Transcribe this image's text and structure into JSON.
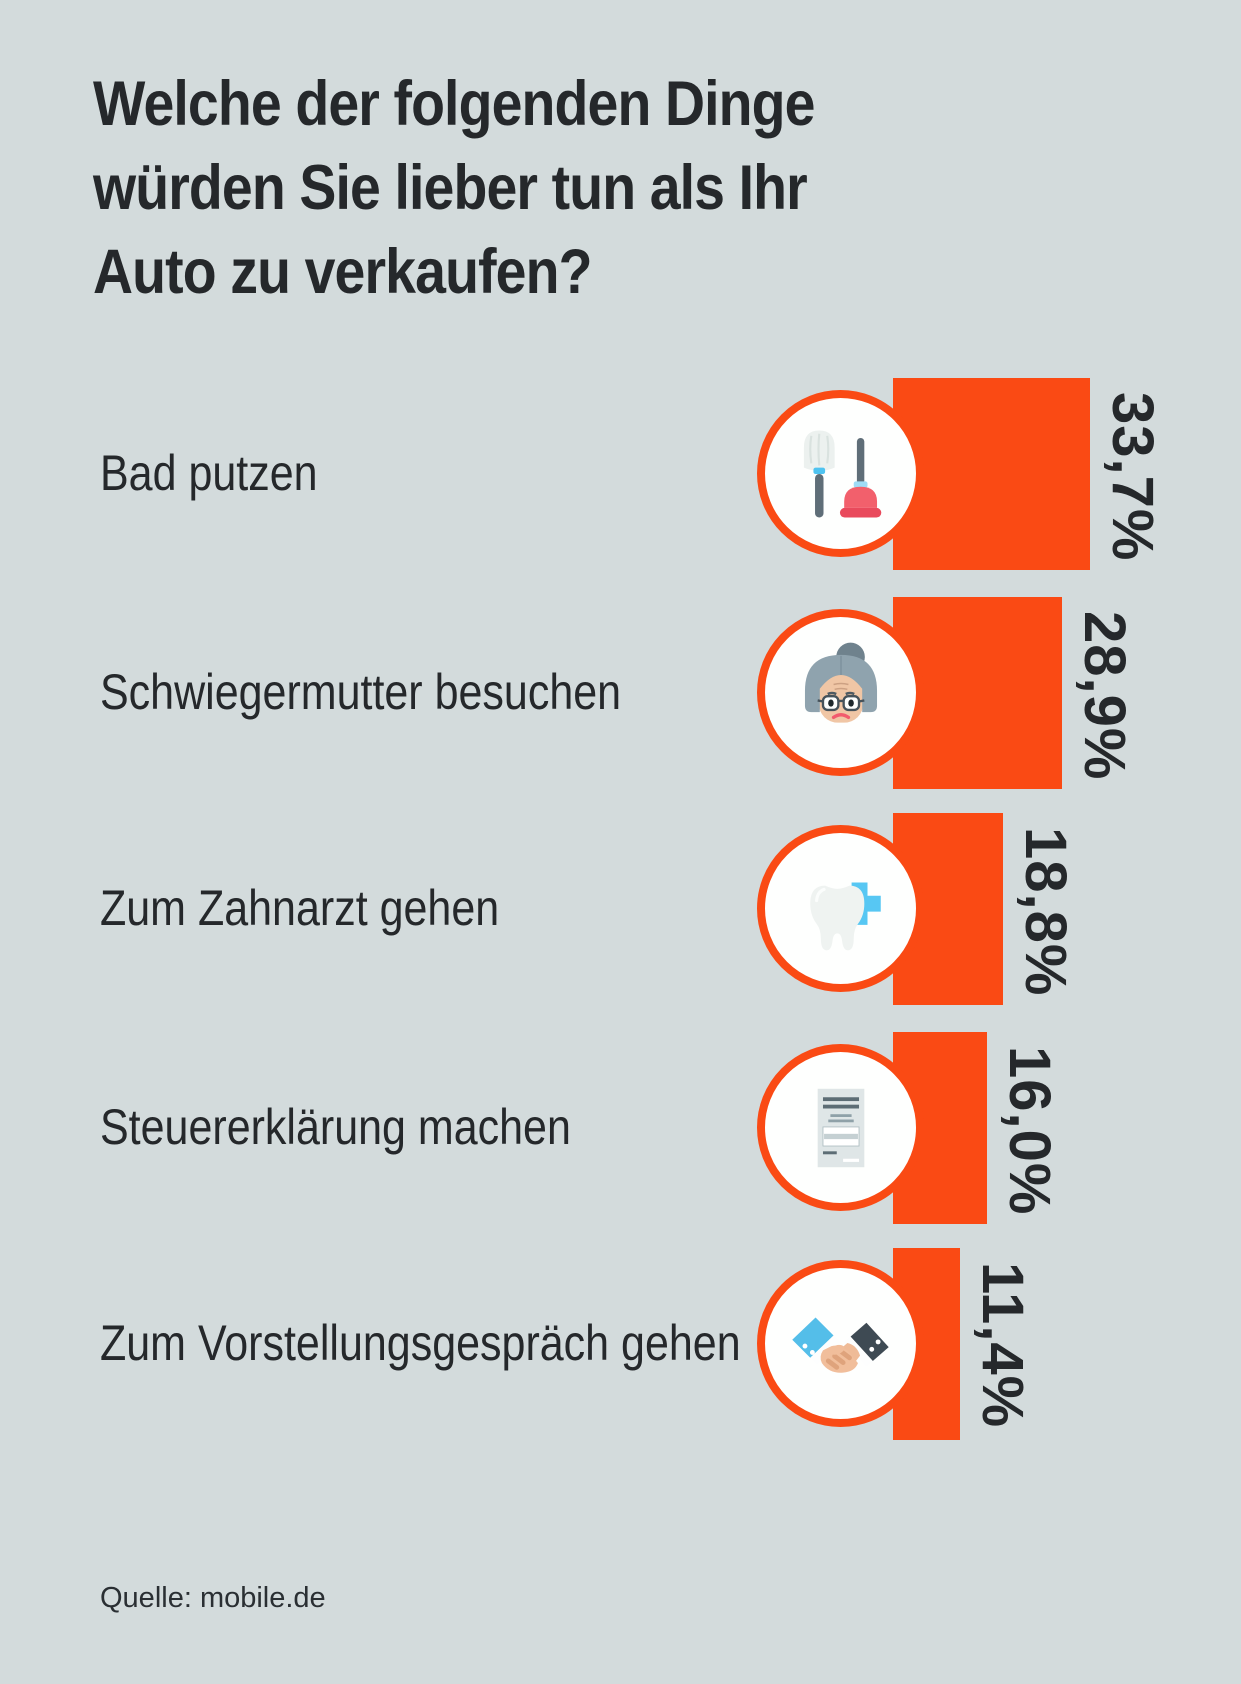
{
  "title_lines": [
    "Welche der folgenden Dinge",
    "würden Sie lieber tun als Ihr",
    "Auto zu verkaufen?"
  ],
  "source": "Quelle: mobile.de",
  "colors": {
    "background": "#D3DBDC",
    "bar": "#FA4A14",
    "text": "#25282B",
    "circle_fill": "#FEFFFE",
    "source_text": "#2A2F33"
  },
  "chart_data": {
    "type": "bar",
    "orientation": "horizontal",
    "title": "Welche der folgenden Dinge würden Sie lieber tun als Ihr Auto zu verkaufen?",
    "categories": [
      "Bad putzen",
      "Schwiegermutter besuchen",
      "Zum Zahnarzt gehen",
      "Steuererklärung machen",
      "Zum Vorstellungsgespräch gehen"
    ],
    "values": [
      33.7,
      28.9,
      18.8,
      16.0,
      11.4
    ],
    "value_labels": [
      "33,7%",
      "28,9%",
      "18,8%",
      "16,0%",
      "11,4%"
    ],
    "unit": "%",
    "icons": [
      "toilet-brush-and-plunger",
      "mother-in-law-face",
      "tooth-with-medical-cross",
      "tax-form-document",
      "handshake"
    ],
    "source": "Quelle: mobile.de",
    "grid": false,
    "legend": false
  }
}
